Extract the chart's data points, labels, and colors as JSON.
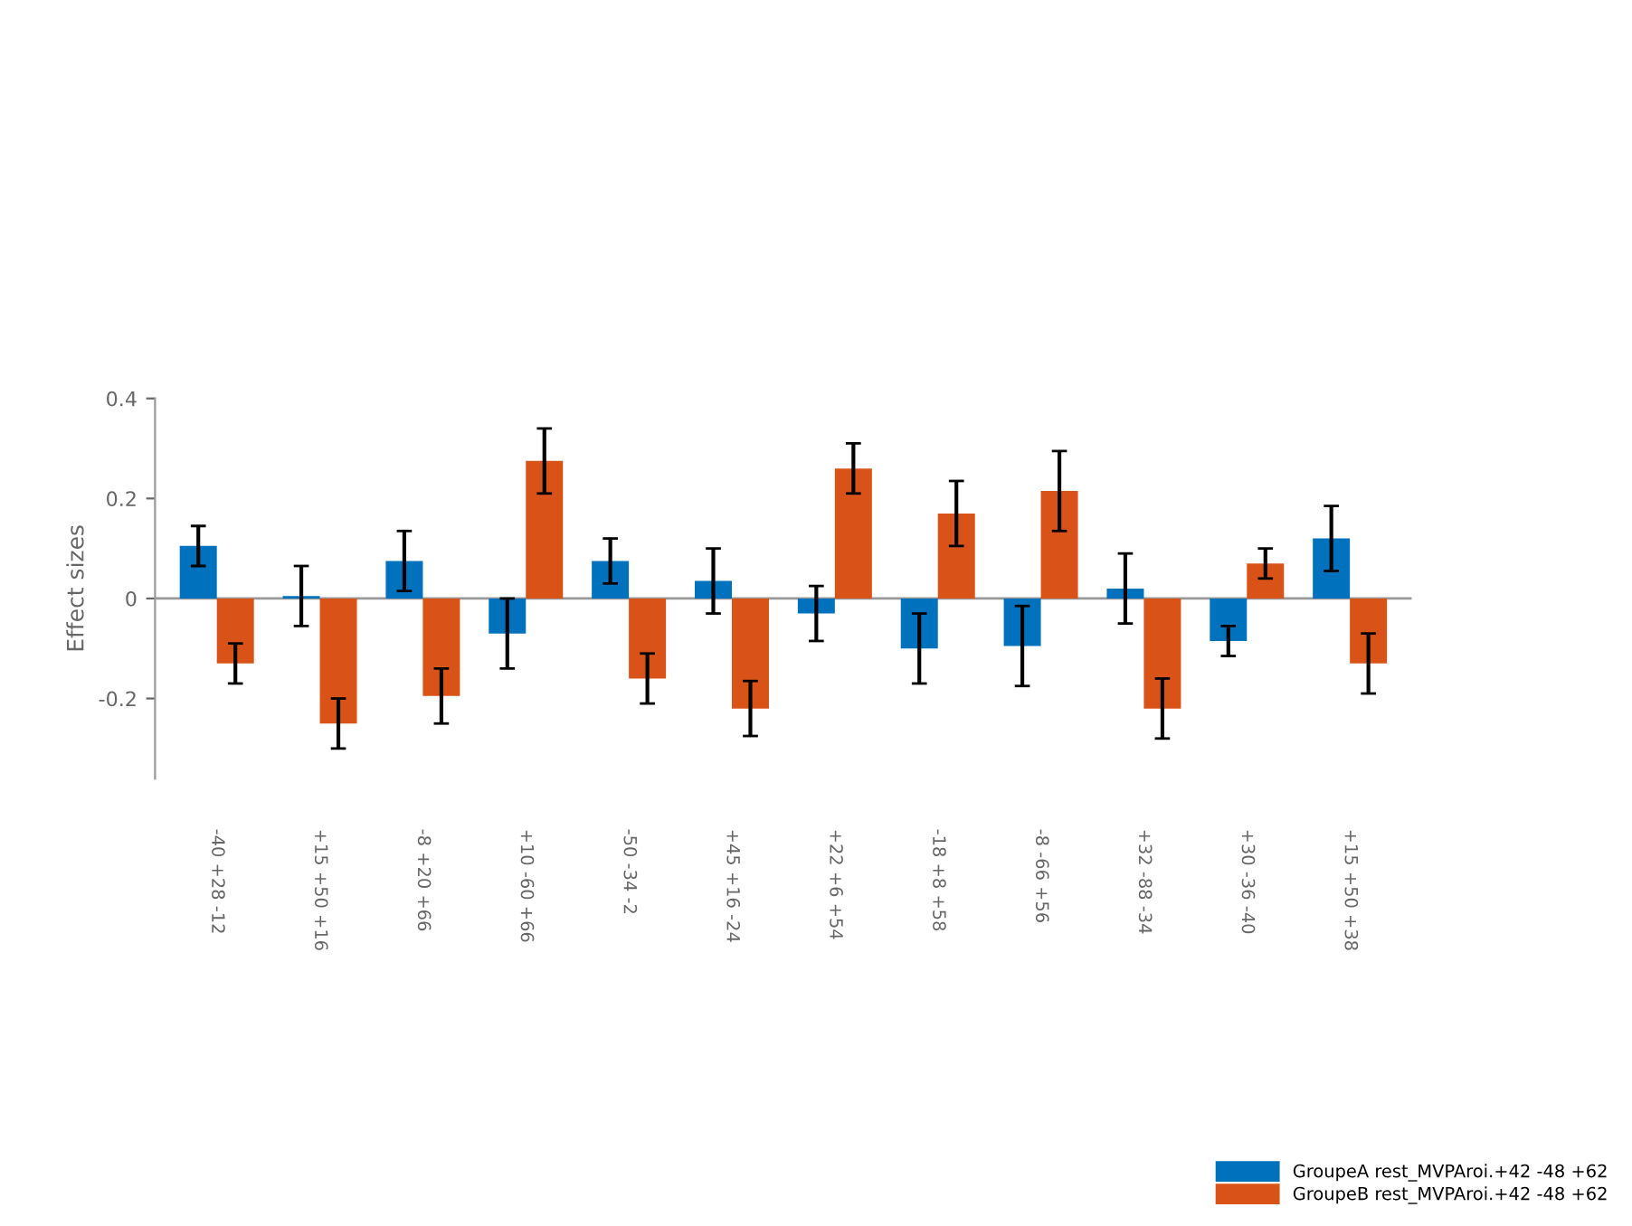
{
  "chart_data": {
    "type": "bar",
    "ylabel": "Effect sizes",
    "categories": [
      "-40 +28 -12",
      "+15 +50 +16",
      "-8 +20 +66",
      "+10 -60 +66",
      "-50 -34 -2",
      "+45 +16 -24",
      "+22 +6 +54",
      "-18 +8 +58",
      "-8 -66 +56",
      "+32 -88 -34",
      "+30 -36 -40",
      "+15 +50 +38"
    ],
    "series": [
      {
        "name": "GroupeA rest_MVPAroi.+42 -48 +62",
        "color": "#0072bd",
        "values": [
          0.105,
          0.005,
          0.075,
          -0.07,
          0.075,
          0.035,
          -0.03,
          -0.1,
          -0.095,
          0.02,
          -0.085,
          0.12
        ],
        "errors": [
          0.04,
          0.06,
          0.06,
          0.07,
          0.045,
          0.065,
          0.055,
          0.07,
          0.08,
          0.07,
          0.03,
          0.065
        ]
      },
      {
        "name": "GroupeB rest_MVPAroi.+42 -48 +62",
        "color": "#d95319",
        "values": [
          -0.13,
          -0.25,
          -0.195,
          0.275,
          -0.16,
          -0.22,
          0.26,
          0.17,
          0.215,
          -0.22,
          0.07,
          -0.13
        ],
        "errors": [
          0.04,
          0.05,
          0.055,
          0.065,
          0.05,
          0.055,
          0.05,
          0.065,
          0.08,
          0.06,
          0.03,
          0.06
        ]
      }
    ],
    "ylim": [
      -0.36,
      0.4
    ],
    "yticks": [
      -0.2,
      0,
      0.2,
      0.4
    ],
    "legend": "bottom right"
  }
}
